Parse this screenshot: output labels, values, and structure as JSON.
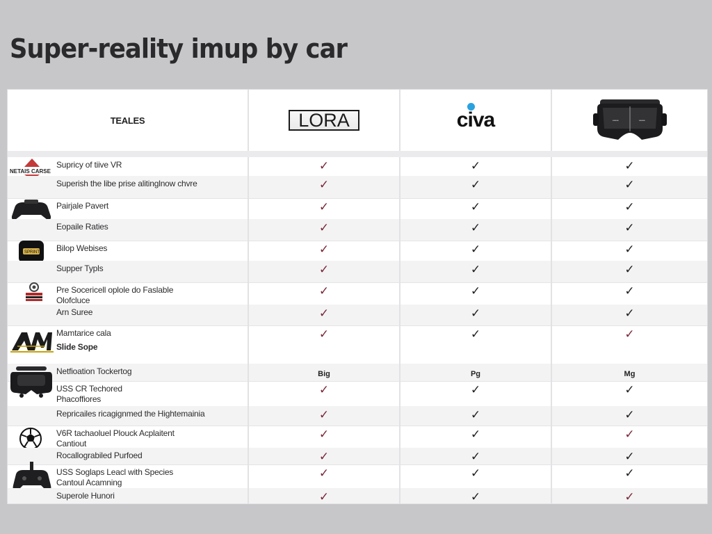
{
  "title": "Super-reality imup by car",
  "header": {
    "features": "TEALES",
    "brands": [
      {
        "name": "LORA",
        "kind": "lora-logo"
      },
      {
        "name": "civa",
        "kind": "civa-logo"
      },
      {
        "name": "VR headset",
        "kind": "headset-image"
      }
    ]
  },
  "colors": {
    "background": "#c7c6c9",
    "check_red": "#7a2637",
    "check_dark": "#1e1e20",
    "civa_dot": "#2aa2e0",
    "lora_accent": "#c9a100"
  },
  "icons": {
    "headset_logo_text": "NETAIS CARSE",
    "black_box_text": "SPRINT"
  },
  "rows": [
    {
      "label": [
        "Supricy of tiive VR"
      ],
      "icon": "warning-triangle-icon",
      "values": [
        "red",
        "dark",
        "dark"
      ]
    },
    {
      "label": [
        "Superish the libe prise alitinglnow chvre"
      ],
      "icon": null,
      "values": [
        "red",
        "dark",
        "dark"
      ]
    },
    {
      "label": [
        "Pairjale Pavert"
      ],
      "icon": "game-controller-icon",
      "values": [
        "red",
        "dark",
        "dark"
      ]
    },
    {
      "label": [
        "Eopaile Raties"
      ],
      "icon": null,
      "values": [
        "red",
        "dark",
        "dark"
      ]
    },
    {
      "label": [
        "Bilop Webises"
      ],
      "icon": "black-box-icon",
      "values": [
        "red",
        "dark",
        "dark"
      ]
    },
    {
      "label": [
        "Supper Typls"
      ],
      "icon": null,
      "values": [
        "red",
        "dark",
        "dark"
      ]
    },
    {
      "label": [
        "Pre Socericell oplole do Faslable",
        "Olofcluce"
      ],
      "icon": "crest-icon",
      "values": [
        "red",
        "dark",
        "dark"
      ]
    },
    {
      "label": [
        "Arn Suree"
      ],
      "icon": null,
      "values": [
        "red",
        "dark",
        "dark"
      ]
    },
    {
      "label": [
        "Mamtarice cala",
        "Slide Sope"
      ],
      "icon": "am-logo-icon",
      "values": [
        "red",
        "dark",
        "red"
      ],
      "bold_second": true
    },
    {
      "label": [
        "Netfioation Tockertog"
      ],
      "icon": "vr-headset-icon",
      "values": [
        "Big",
        "Pg",
        "Mg"
      ]
    },
    {
      "label": [
        "USS CR Techored",
        "Phacoffiores"
      ],
      "icon": null,
      "values": [
        "red",
        "dark",
        "dark"
      ]
    },
    {
      "label": [
        "Repricailes ricagignmed the Hightemainia"
      ],
      "icon": null,
      "values": [
        "red",
        "dark",
        "dark"
      ]
    },
    {
      "label": [
        "V6R tachaoluel Plouck Acplaitent",
        "Cantiout"
      ],
      "icon": "soccer-ball-icon",
      "values": [
        "red",
        "dark",
        "red"
      ]
    },
    {
      "label": [
        "Rocallograbiled Purfoed"
      ],
      "icon": null,
      "values": [
        "red",
        "dark",
        "dark"
      ]
    },
    {
      "label": [
        "USS Soglaps Leacl with Species",
        "Cantoul Acamning"
      ],
      "icon": "gamepad-icon",
      "values": [
        "red",
        "dark",
        "dark"
      ]
    },
    {
      "label": [
        "Superole Hunori"
      ],
      "icon": null,
      "values": [
        "red",
        "dark",
        "red"
      ]
    }
  ]
}
